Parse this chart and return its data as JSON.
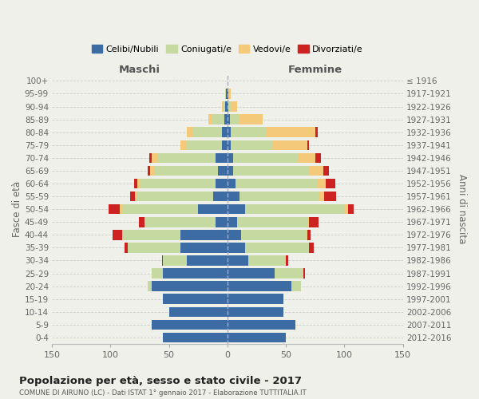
{
  "age_groups": [
    "0-4",
    "5-9",
    "10-14",
    "15-19",
    "20-24",
    "25-29",
    "30-34",
    "35-39",
    "40-44",
    "45-49",
    "50-54",
    "55-59",
    "60-64",
    "65-69",
    "70-74",
    "75-79",
    "80-84",
    "85-89",
    "90-94",
    "95-99",
    "100+"
  ],
  "birth_years": [
    "2012-2016",
    "2007-2011",
    "2002-2006",
    "1997-2001",
    "1992-1996",
    "1987-1991",
    "1982-1986",
    "1977-1981",
    "1972-1976",
    "1967-1971",
    "1962-1966",
    "1957-1961",
    "1952-1956",
    "1947-1951",
    "1942-1946",
    "1937-1941",
    "1932-1936",
    "1927-1931",
    "1922-1926",
    "1917-1921",
    "≤ 1916"
  ],
  "maschi": {
    "celibi": [
      55,
      65,
      50,
      55,
      65,
      55,
      35,
      40,
      40,
      10,
      25,
      12,
      10,
      8,
      10,
      5,
      5,
      3,
      2,
      1,
      0
    ],
    "coniugati": [
      0,
      0,
      0,
      0,
      3,
      10,
      20,
      45,
      50,
      60,
      65,
      65,
      65,
      55,
      50,
      30,
      25,
      10,
      2,
      1,
      0
    ],
    "vedovi": [
      0,
      0,
      0,
      0,
      0,
      0,
      0,
      0,
      0,
      1,
      2,
      2,
      2,
      3,
      5,
      5,
      5,
      3,
      1,
      0,
      0
    ],
    "divorziati": [
      0,
      0,
      0,
      0,
      0,
      0,
      1,
      3,
      8,
      5,
      10,
      4,
      3,
      2,
      2,
      0,
      0,
      0,
      0,
      0,
      0
    ]
  },
  "femmine": {
    "nubili": [
      50,
      58,
      48,
      48,
      55,
      40,
      18,
      15,
      12,
      8,
      15,
      10,
      7,
      5,
      5,
      3,
      3,
      2,
      1,
      1,
      0
    ],
    "coniugate": [
      0,
      0,
      0,
      0,
      8,
      25,
      32,
      55,
      55,
      60,
      85,
      68,
      70,
      65,
      55,
      35,
      30,
      8,
      2,
      0,
      0
    ],
    "vedove": [
      0,
      0,
      0,
      0,
      0,
      0,
      0,
      0,
      1,
      2,
      3,
      5,
      7,
      12,
      15,
      30,
      42,
      20,
      5,
      2,
      0
    ],
    "divorziate": [
      0,
      0,
      0,
      0,
      0,
      1,
      2,
      4,
      3,
      8,
      5,
      10,
      8,
      5,
      5,
      2,
      2,
      0,
      0,
      0,
      0
    ]
  },
  "colors": {
    "celibi": "#3d6ca5",
    "coniugati": "#c5d9a0",
    "vedovi": "#f5c97a",
    "divorziati": "#cc2222"
  },
  "xlim": 150,
  "title": "Popolazione per età, sesso e stato civile - 2017",
  "subtitle": "COMUNE DI AIRUNO (LC) - Dati ISTAT 1° gennaio 2017 - Elaborazione TUTTITALIA.IT",
  "ylabel_left": "Fasce di età",
  "ylabel_right": "Anni di nascita",
  "xlabel_left": "Maschi",
  "xlabel_right": "Femmine",
  "legend_labels": [
    "Celibi/Nubili",
    "Coniugati/e",
    "Vedovi/e",
    "Divorziati/e"
  ],
  "background_color": "#f0f0eb",
  "grid_color": "#cccccc"
}
